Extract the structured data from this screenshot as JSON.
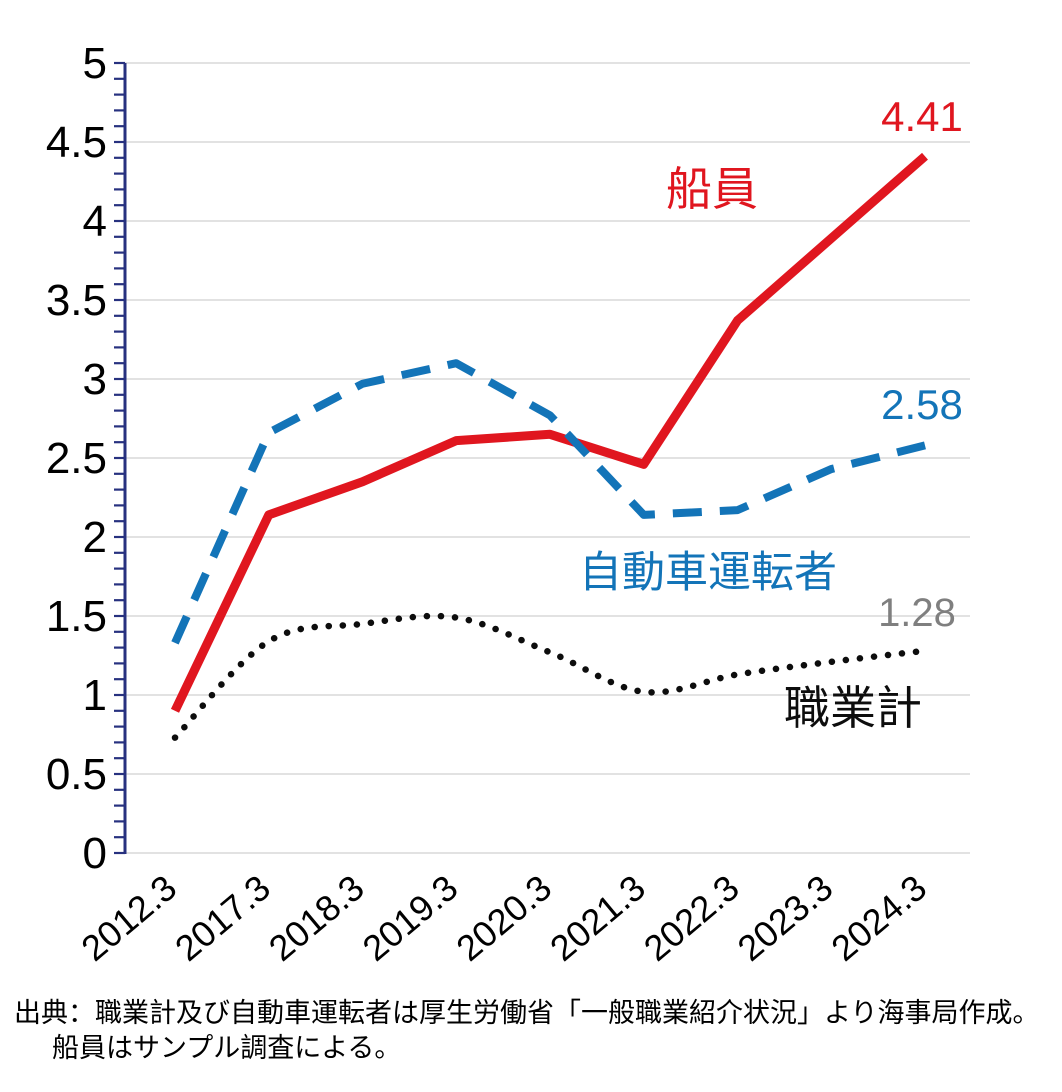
{
  "chart_data": {
    "type": "line",
    "categories": [
      "2012.3",
      "2017.3",
      "2018.3",
      "2019.3",
      "2020.3",
      "2021.3",
      "2022.3",
      "2023.3",
      "2024.3"
    ],
    "series": [
      {
        "id": "seafarers",
        "name": "船員",
        "values": [
          0.9,
          2.14,
          2.35,
          2.61,
          2.65,
          2.46,
          3.37,
          3.89,
          4.41
        ],
        "color": "#e0161f",
        "line_style": "solid",
        "smooth": false,
        "end_label": "4.41",
        "end_label_color": "#e0161f",
        "label_x": 712,
        "label_y": 205,
        "label_size": 46,
        "value_x": 922,
        "value_y": 131,
        "value_size": 42
      },
      {
        "id": "auto-drivers",
        "name": "自動車運転者",
        "values": [
          1.33,
          2.66,
          2.97,
          3.1,
          2.77,
          2.14,
          2.17,
          2.43,
          2.58
        ],
        "color": "#1374b8",
        "line_style": "dashed",
        "smooth": false,
        "end_label": "2.58",
        "end_label_color": "#1374b8",
        "label_x": 708,
        "label_y": 587,
        "label_size": 43,
        "value_x": 922,
        "value_y": 419,
        "value_size": 42
      },
      {
        "id": "all-occupations",
        "name": "職業計",
        "values": [
          0.73,
          1.34,
          1.45,
          1.49,
          1.27,
          1.02,
          1.13,
          1.21,
          1.28
        ],
        "color": "#0d0d0d",
        "line_style": "dotted",
        "smooth": true,
        "end_label": "1.28",
        "end_label_color": "#7f7f7f",
        "label_x": 853,
        "label_y": 724,
        "label_size": 46,
        "value_x": 917,
        "value_y": 626,
        "value_size": 40
      }
    ],
    "title": "",
    "xlabel": "",
    "ylabel": "",
    "ylim": [
      0,
      5
    ],
    "ytick_step": 0.5,
    "minor_tick_step": 0.1,
    "grid": "horizontal",
    "gridline_color": "#d9d9d9",
    "axis_color": "#27317f",
    "legend_position": "inline-annotations"
  },
  "source": {
    "line1": "出典：職業計及び自動車運転者は厚生労働省「一般職業紹介状況」より海事局作成。",
    "line2": "船員はサンプル調査による。"
  }
}
